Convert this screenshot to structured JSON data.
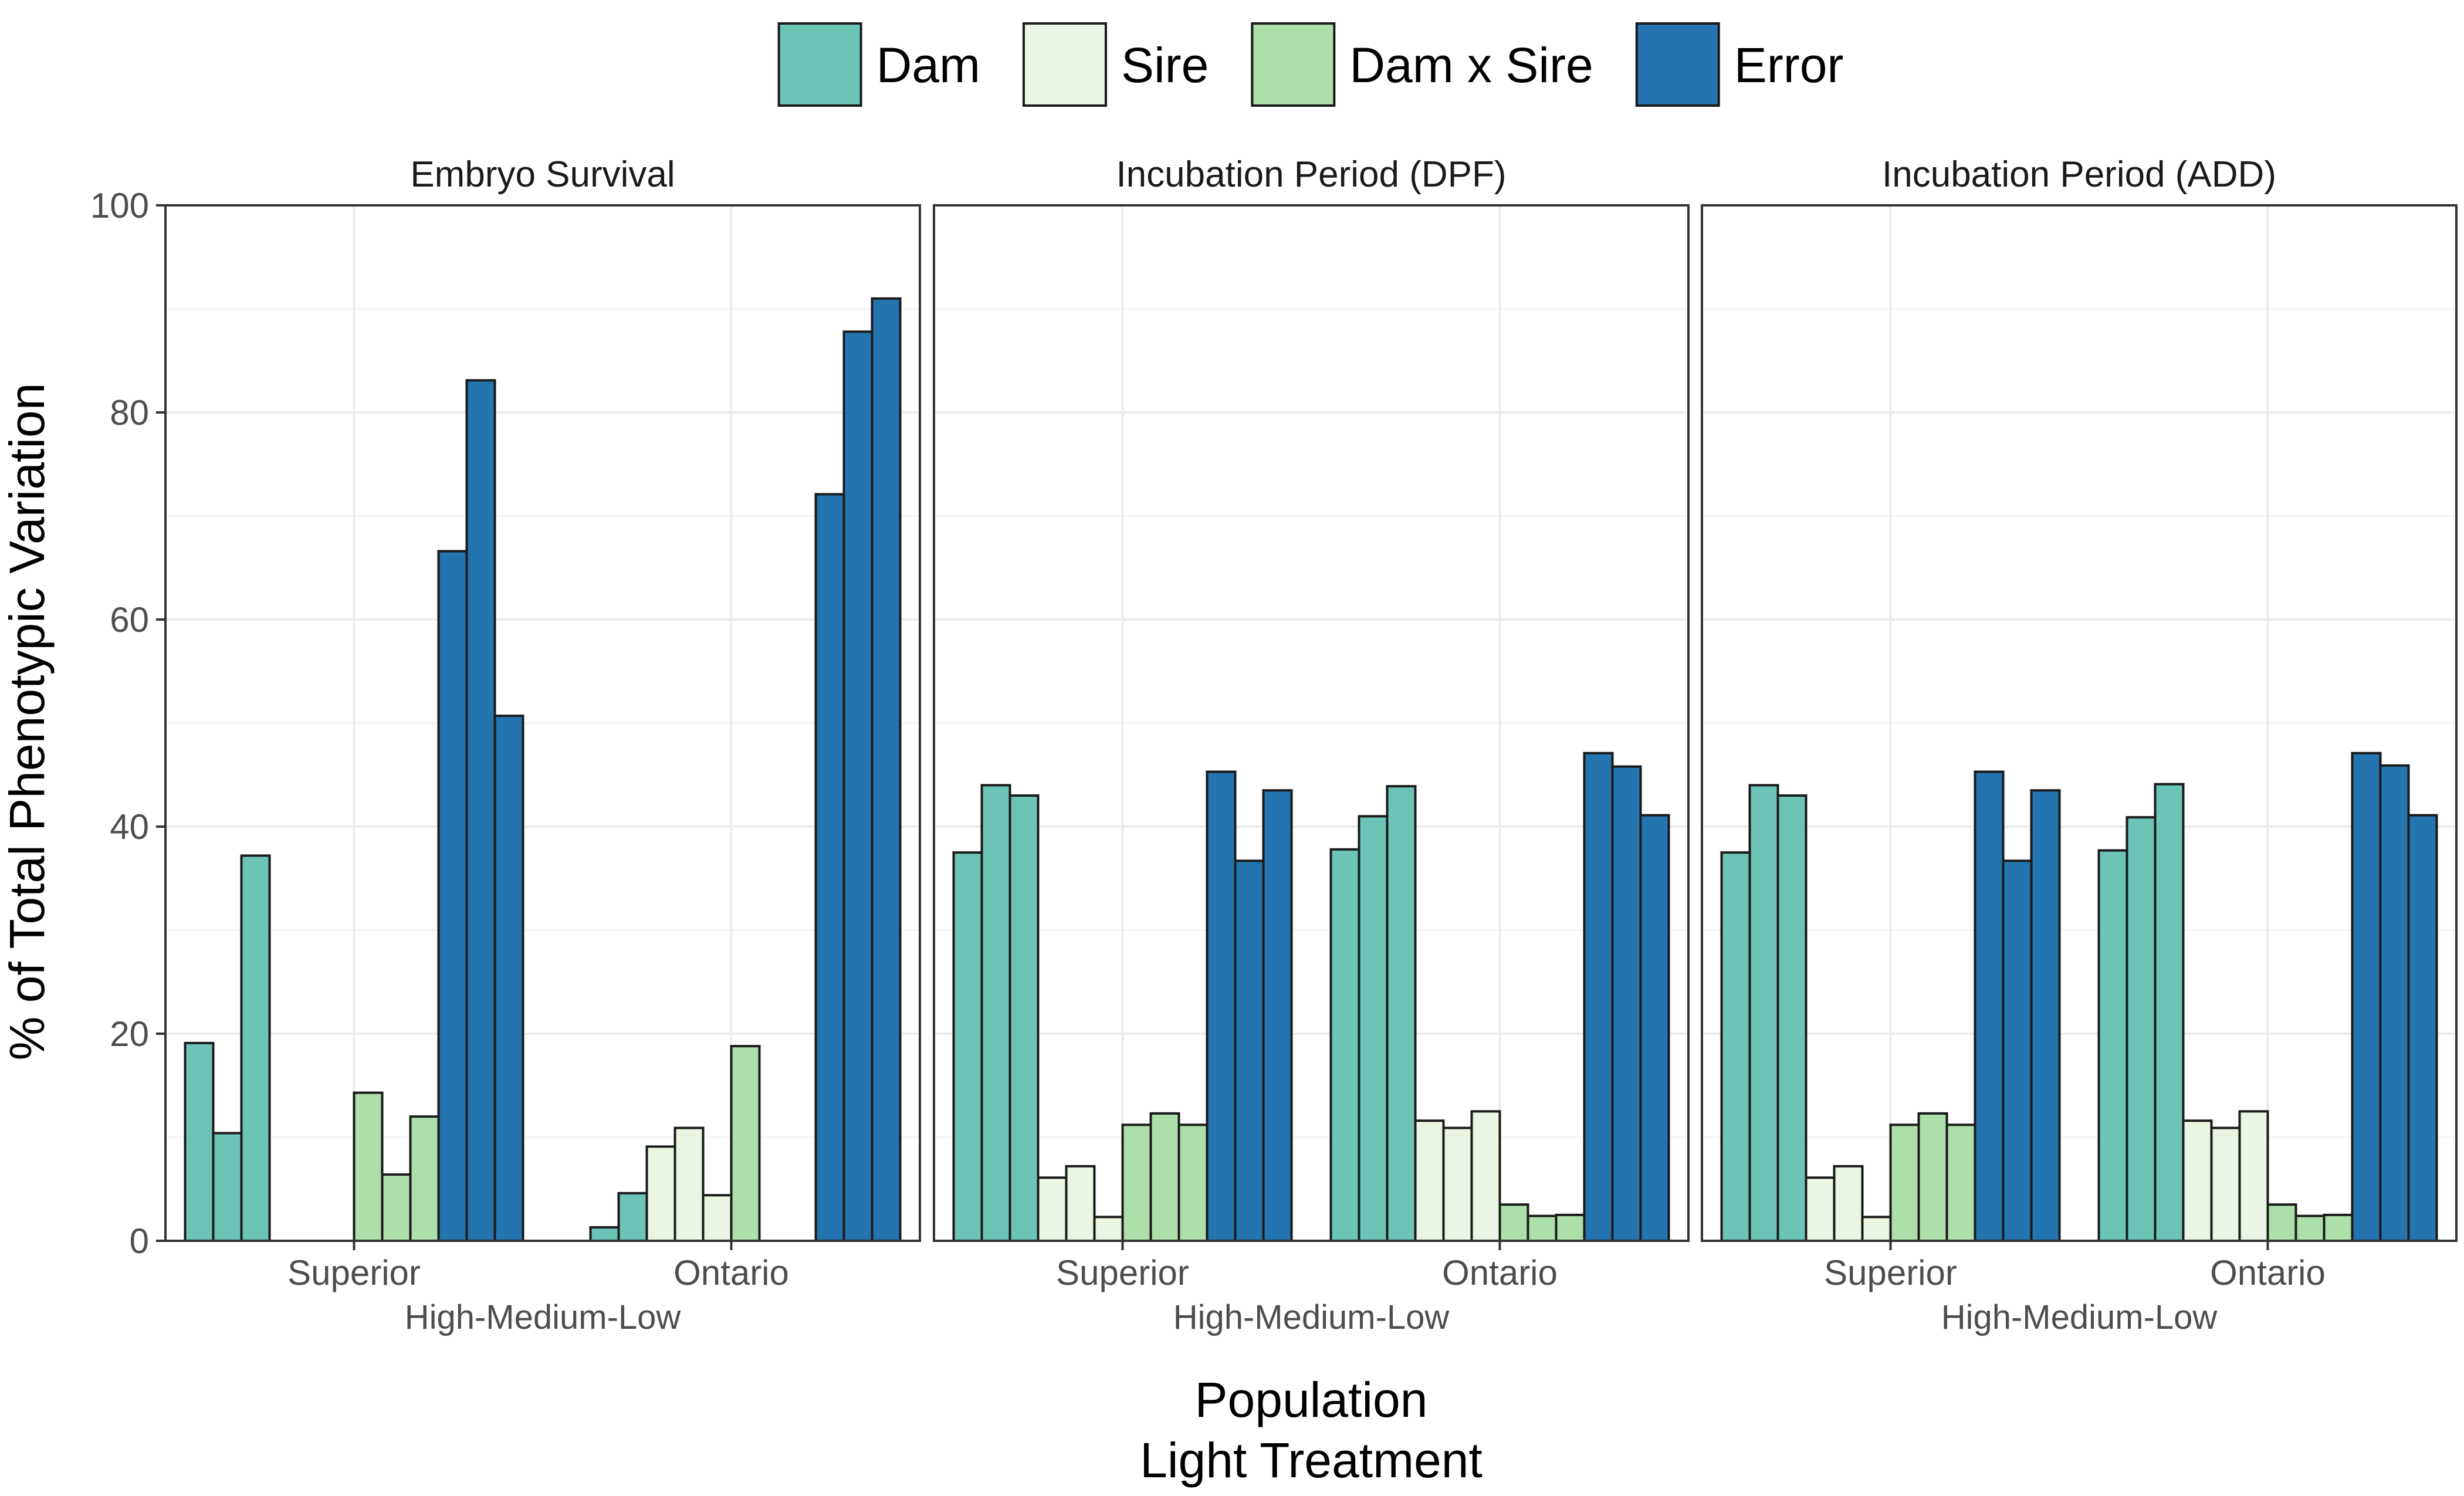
{
  "chart_data": {
    "type": "bar",
    "ylabel": "% of Total Phenotypic Variation",
    "xlabel_line1": "Population",
    "xlabel_line2": "Light Treatment",
    "ylim": [
      0,
      100
    ],
    "yticks": [
      0,
      20,
      40,
      60,
      80,
      100
    ],
    "grid": true,
    "legend_position": "top",
    "population_categories": [
      "Superior",
      "Ontario"
    ],
    "light_treatment_label": "High-Medium-Low",
    "light_levels": [
      "High",
      "Medium",
      "Low"
    ],
    "components": [
      {
        "name": "Dam",
        "color": "#6cc4b6"
      },
      {
        "name": "Sire",
        "color": "#eaf6e1"
      },
      {
        "name": "Dam x Sire",
        "color": "#addfab"
      },
      {
        "name": "Error",
        "color": "#2474b0"
      }
    ],
    "panels": [
      {
        "title": "Embryo Survival",
        "values": {
          "Superior": {
            "Dam": [
              19.1,
              10.4,
              37.2
            ],
            "Sire": [
              0,
              0,
              0
            ],
            "Dam x Sire": [
              14.3,
              6.4,
              12.0
            ],
            "Error": [
              66.6,
              83.1,
              50.7
            ]
          },
          "Ontario": {
            "Dam": [
              0,
              1.3,
              4.6
            ],
            "Sire": [
              9.1,
              10.9,
              4.4
            ],
            "Dam x Sire": [
              18.8,
              0,
              0
            ],
            "Error": [
              72.1,
              87.8,
              91.0
            ]
          }
        }
      },
      {
        "title": "Incubation Period (DPF)",
        "values": {
          "Superior": {
            "Dam": [
              37.5,
              44.0,
              43.0
            ],
            "Sire": [
              6.1,
              7.2,
              2.3
            ],
            "Dam x Sire": [
              11.2,
              12.3,
              11.2
            ],
            "Error": [
              45.3,
              36.7,
              43.5
            ]
          },
          "Ontario": {
            "Dam": [
              37.8,
              41.0,
              43.9
            ],
            "Sire": [
              11.6,
              10.9,
              12.5
            ],
            "Dam x Sire": [
              3.5,
              2.4,
              2.5
            ],
            "Error": [
              47.1,
              45.8,
              41.1
            ]
          }
        }
      },
      {
        "title": "Incubation Period (ADD)",
        "values": {
          "Superior": {
            "Dam": [
              37.5,
              44.0,
              43.0
            ],
            "Sire": [
              6.1,
              7.2,
              2.3
            ],
            "Dam x Sire": [
              11.2,
              12.3,
              11.2
            ],
            "Error": [
              45.3,
              36.7,
              43.5
            ]
          },
          "Ontario": {
            "Dam": [
              37.7,
              40.9,
              44.1
            ],
            "Sire": [
              11.6,
              10.9,
              12.5
            ],
            "Dam x Sire": [
              3.5,
              2.4,
              2.5
            ],
            "Error": [
              47.1,
              45.9,
              41.1
            ]
          }
        }
      }
    ]
  }
}
